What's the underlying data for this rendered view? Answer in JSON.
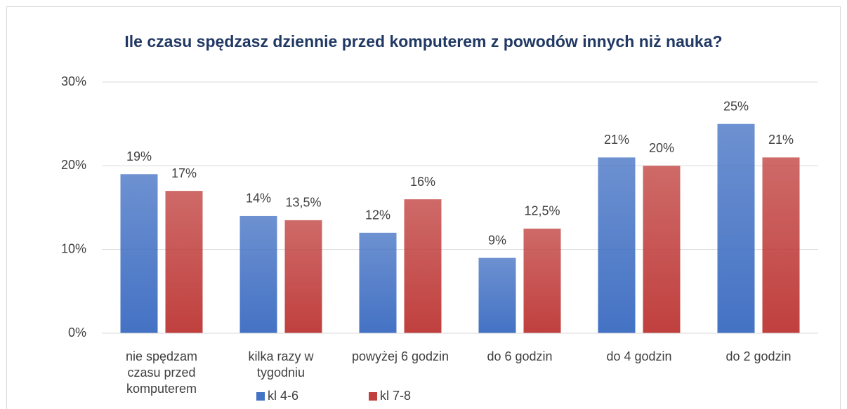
{
  "chart_data": {
    "type": "bar",
    "title": "Ile czasu spędzasz dziennie przed komputerem z powodów innych niż nauka?",
    "categories": [
      "nie spędzam czasu przed komputerem",
      "kilka razy w tygodniu",
      "powyżej 6 godzin",
      "do 6 godzin",
      "do 4 godzin",
      "do 2 godzin"
    ],
    "series": [
      {
        "name": "kl 4-6",
        "color": "#4472c4",
        "values": [
          19,
          14,
          12,
          9,
          21,
          25
        ],
        "value_labels": [
          "19%",
          "14%",
          "12%",
          "9%",
          "21%",
          "25%"
        ]
      },
      {
        "name": "kl 7-8",
        "color": "#c0403e",
        "values": [
          17,
          13.5,
          16,
          12.5,
          20,
          21
        ],
        "value_labels": [
          "17%",
          "13,5%",
          "16%",
          "12,5%",
          "20%",
          "21%"
        ]
      }
    ],
    "ylim": [
      0,
      30
    ],
    "yticks": [
      {
        "value": 0,
        "label": "0%"
      },
      {
        "value": 10,
        "label": "10%"
      },
      {
        "value": 20,
        "label": "20%"
      },
      {
        "value": 30,
        "label": "30%"
      }
    ],
    "grid": true,
    "legend": "bottom"
  }
}
